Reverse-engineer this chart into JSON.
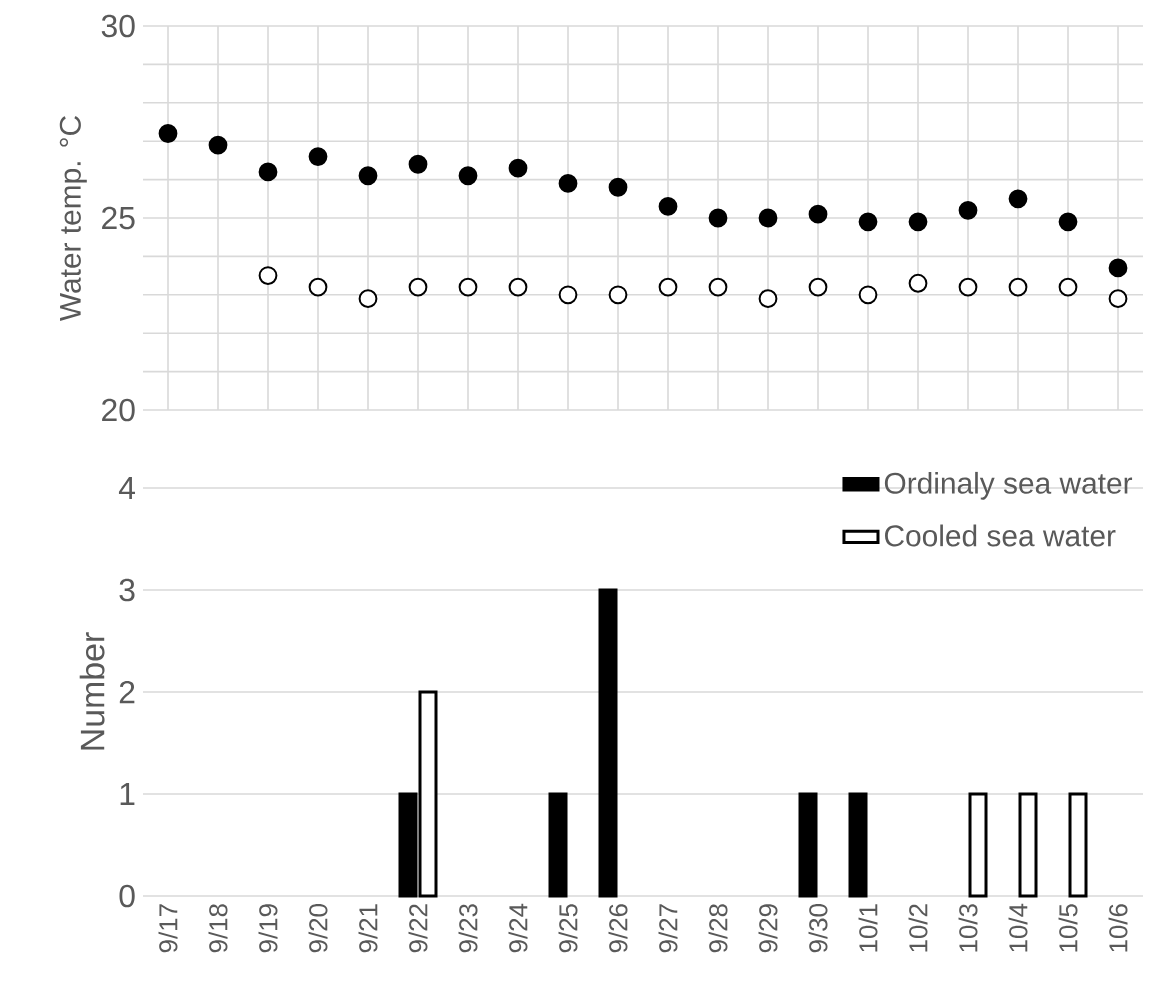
{
  "chart_data": [
    {
      "type": "scatter",
      "categories": [
        null,
        null,
        null,
        null,
        null,
        null,
        null,
        null,
        null,
        null,
        null,
        null,
        null,
        null,
        null,
        null,
        null,
        null,
        null,
        null
      ],
      "ylabel": "Water temp. °C",
      "ylim": [
        20,
        30
      ],
      "yticks": [
        20,
        {
          "value": 21,
          "label": null
        },
        {
          "value": 22,
          "label": null
        },
        {
          "value": 23,
          "label": null
        },
        {
          "value": 24,
          "label": null
        },
        25,
        {
          "value": 26,
          "label": null
        },
        {
          "value": 27,
          "label": null
        },
        {
          "value": 28,
          "label": null
        },
        {
          "value": 29,
          "label": null
        },
        30
      ],
      "grid": true,
      "series": [
        {
          "color": "#000000",
          "values": [
            27.2,
            26.9,
            26.2,
            26.6,
            26.1,
            26.4,
            26.1,
            26.3,
            25.9,
            25.8,
            25.3,
            25.0,
            25.0,
            25.1,
            24.9,
            24.9,
            25.2,
            25.5,
            24.9,
            23.7
          ]
        },
        {
          "color": "#ffffff",
          "values": [
            null,
            null,
            23.5,
            23.2,
            22.9,
            23.2,
            23.2,
            23.2,
            23.0,
            23.0,
            23.2,
            23.2,
            22.9,
            23.2,
            23.0,
            23.3,
            23.2,
            23.2,
            23.2,
            22.9
          ]
        }
      ]
    },
    {
      "type": "bar",
      "categories": [
        "9/17",
        "9/18",
        "9/19",
        "9/20",
        "9/21",
        "9/22",
        "9/23",
        "9/24",
        "9/25",
        "9/26",
        "9/27",
        "9/28",
        "9/29",
        "9/30",
        "10/1",
        "10/2",
        "10/3",
        "10/4",
        "10/5",
        "10/6"
      ],
      "ylabel": "Number",
      "ylim": [
        0,
        4
      ],
      "yticks": [
        0,
        1,
        2,
        3,
        4
      ],
      "grid": "y",
      "legend": "top right",
      "series": [
        {
          "name": "Ordinaly sea water",
          "color": "#000000",
          "values": [
            null,
            null,
            null,
            null,
            null,
            1,
            null,
            null,
            1,
            3,
            null,
            null,
            null,
            1,
            1,
            null,
            null,
            null,
            null,
            null
          ]
        },
        {
          "name": "Cooled sea water",
          "color": "#ffffff",
          "values": [
            null,
            null,
            null,
            null,
            null,
            2,
            null,
            null,
            null,
            null,
            null,
            null,
            null,
            null,
            null,
            null,
            1,
            1,
            1,
            null
          ]
        }
      ]
    }
  ]
}
